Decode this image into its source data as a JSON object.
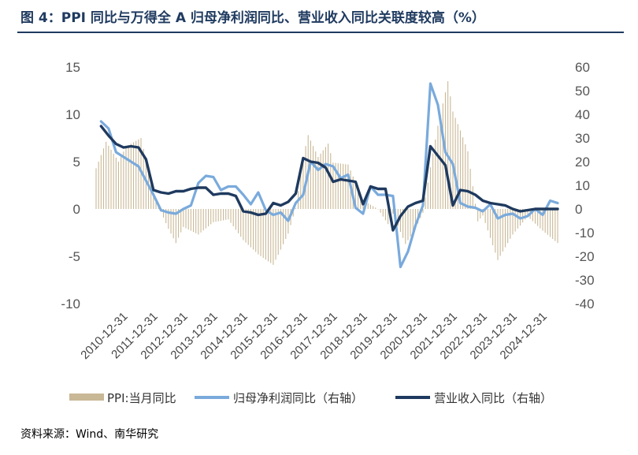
{
  "title": "图 4：PPI 同比与万得全 A 归母净利润同比、营业收入同比关联度较高（%）",
  "source": "资料来源：Wind、南华研究",
  "chart_data": {
    "type": "bar+line",
    "left_axis": {
      "ylim": [
        -10,
        15
      ],
      "ticks": [
        "15",
        "10",
        "5",
        "0",
        "-5",
        "-10"
      ]
    },
    "right_axis": {
      "ylim": [
        -40,
        60
      ],
      "ticks": [
        "60",
        "50",
        "40",
        "30",
        "20",
        "10",
        "0",
        "-10",
        "-20",
        "-30",
        "-40"
      ]
    },
    "x_tick_labels": [
      "2010-12-31",
      "2011-12-31",
      "2012-12-31",
      "2013-12-31",
      "2014-12-31",
      "2015-12-31",
      "2016-12-31",
      "2017-12-31",
      "2018-12-31",
      "2019-12-31",
      "2020-12-31",
      "2021-12-31",
      "2022-12-31",
      "2023-12-31",
      "2024-12-31"
    ],
    "time_range": [
      "2010-01",
      "2025-06"
    ],
    "legend": [
      "PPI:当月同比",
      "归母净利润同比（右轴）",
      "营业收入同比（右轴）"
    ],
    "legend_position": "bottom",
    "colors": {
      "ppi": "#c9b896",
      "profit": "#7aaadc",
      "revenue": "#1f3a5f"
    },
    "series": [
      {
        "name": "PPI:当月同比",
        "axis": "left",
        "kind": "bar",
        "monthly_anchors": [
          [
            "2010-01",
            4.3
          ],
          [
            "2010-05",
            7.1
          ],
          [
            "2010-10",
            5.0
          ],
          [
            "2011-01",
            6.6
          ],
          [
            "2011-07",
            7.5
          ],
          [
            "2011-12",
            1.7
          ],
          [
            "2012-03",
            -0.3
          ],
          [
            "2012-06",
            -2.1
          ],
          [
            "2012-09",
            -3.6
          ],
          [
            "2012-12",
            -1.9
          ],
          [
            "2013-06",
            -2.7
          ],
          [
            "2013-12",
            -1.4
          ],
          [
            "2014-06",
            -1.1
          ],
          [
            "2014-12",
            -3.3
          ],
          [
            "2015-06",
            -4.8
          ],
          [
            "2015-12",
            -5.9
          ],
          [
            "2016-03",
            -4.3
          ],
          [
            "2016-06",
            -2.6
          ],
          [
            "2016-09",
            0.1
          ],
          [
            "2016-12",
            5.5
          ],
          [
            "2017-02",
            7.8
          ],
          [
            "2017-06",
            5.5
          ],
          [
            "2017-10",
            6.9
          ],
          [
            "2017-12",
            4.9
          ],
          [
            "2018-06",
            4.7
          ],
          [
            "2018-12",
            0.9
          ],
          [
            "2019-06",
            0.0
          ],
          [
            "2019-10",
            -1.6
          ],
          [
            "2019-12",
            -0.5
          ],
          [
            "2020-05",
            -3.7
          ],
          [
            "2020-09",
            -2.1
          ],
          [
            "2020-12",
            -0.4
          ],
          [
            "2021-03",
            4.4
          ],
          [
            "2021-06",
            8.8
          ],
          [
            "2021-10",
            13.5
          ],
          [
            "2021-12",
            10.3
          ],
          [
            "2022-03",
            8.3
          ],
          [
            "2022-06",
            6.1
          ],
          [
            "2022-10",
            -1.3
          ],
          [
            "2022-12",
            -0.7
          ],
          [
            "2023-06",
            -5.4
          ],
          [
            "2023-12",
            -2.7
          ],
          [
            "2024-06",
            -0.8
          ],
          [
            "2024-12",
            -2.3
          ],
          [
            "2025-06",
            -3.6
          ]
        ]
      },
      {
        "name": "归母净利润同比（右轴）",
        "axis": "right",
        "kind": "line",
        "points": [
          [
            "2010-03",
            37
          ],
          [
            "2010-06",
            34
          ],
          [
            "2010-09",
            24
          ],
          [
            "2010-12",
            22
          ],
          [
            "2011-03",
            20
          ],
          [
            "2011-06",
            18
          ],
          [
            "2011-09",
            12
          ],
          [
            "2011-12",
            6
          ],
          [
            "2012-03",
            -0.5
          ],
          [
            "2012-06",
            -1.5
          ],
          [
            "2012-09",
            -2
          ],
          [
            "2012-12",
            0
          ],
          [
            "2013-03",
            1.5
          ],
          [
            "2013-06",
            11
          ],
          [
            "2013-09",
            14
          ],
          [
            "2013-12",
            13.5
          ],
          [
            "2014-03",
            8
          ],
          [
            "2014-06",
            9.5
          ],
          [
            "2014-09",
            9.5
          ],
          [
            "2014-12",
            6
          ],
          [
            "2015-03",
            2
          ],
          [
            "2015-06",
            7
          ],
          [
            "2015-09",
            -0.5
          ],
          [
            "2015-12",
            -2.5
          ],
          [
            "2016-03",
            -1.5
          ],
          [
            "2016-06",
            -5
          ],
          [
            "2016-09",
            2.5
          ],
          [
            "2016-12",
            6
          ],
          [
            "2017-03",
            20
          ],
          [
            "2017-06",
            16.5
          ],
          [
            "2017-09",
            19
          ],
          [
            "2017-12",
            18
          ],
          [
            "2018-03",
            13
          ],
          [
            "2018-06",
            14.5
          ],
          [
            "2018-09",
            0.5
          ],
          [
            "2018-12",
            -2
          ],
          [
            "2019-03",
            9.5
          ],
          [
            "2019-06",
            6
          ],
          [
            "2019-09",
            6
          ],
          [
            "2019-12",
            5.5
          ],
          [
            "2020-03",
            -24.5
          ],
          [
            "2020-06",
            -18
          ],
          [
            "2020-09",
            -7
          ],
          [
            "2020-12",
            1.5
          ],
          [
            "2021-03",
            53
          ],
          [
            "2021-06",
            44
          ],
          [
            "2021-09",
            24
          ],
          [
            "2021-12",
            19
          ],
          [
            "2022-03",
            2.5
          ],
          [
            "2022-06",
            1
          ],
          [
            "2022-09",
            0.5
          ],
          [
            "2022-12",
            -1
          ],
          [
            "2023-03",
            2
          ],
          [
            "2023-06",
            -4
          ],
          [
            "2023-09",
            -2.5
          ],
          [
            "2023-12",
            -2
          ],
          [
            "2024-03",
            -4
          ],
          [
            "2024-06",
            -3
          ],
          [
            "2024-09",
            0
          ],
          [
            "2024-12",
            -2.5
          ],
          [
            "2025-03",
            3.5
          ],
          [
            "2025-06",
            2.5
          ]
        ]
      },
      {
        "name": "营业收入同比（右轴）",
        "axis": "right",
        "kind": "line",
        "points": [
          [
            "2010-03",
            35
          ],
          [
            "2010-06",
            31
          ],
          [
            "2010-09",
            27.5
          ],
          [
            "2010-12",
            26
          ],
          [
            "2011-03",
            26.5
          ],
          [
            "2011-06",
            26
          ],
          [
            "2011-09",
            21
          ],
          [
            "2011-12",
            8
          ],
          [
            "2012-03",
            7
          ],
          [
            "2012-06",
            6.5
          ],
          [
            "2012-09",
            7.5
          ],
          [
            "2012-12",
            7.5
          ],
          [
            "2013-03",
            8.5
          ],
          [
            "2013-06",
            9
          ],
          [
            "2013-09",
            9
          ],
          [
            "2013-12",
            6
          ],
          [
            "2014-03",
            6.5
          ],
          [
            "2014-06",
            6.5
          ],
          [
            "2014-09",
            5.5
          ],
          [
            "2014-12",
            -1
          ],
          [
            "2015-03",
            -1.5
          ],
          [
            "2015-06",
            -2.5
          ],
          [
            "2015-09",
            -2
          ],
          [
            "2015-12",
            2.5
          ],
          [
            "2016-03",
            1.5
          ],
          [
            "2016-06",
            3
          ],
          [
            "2016-09",
            6.5
          ],
          [
            "2016-12",
            21.5
          ],
          [
            "2017-03",
            20
          ],
          [
            "2017-06",
            19.5
          ],
          [
            "2017-09",
            17.5
          ],
          [
            "2017-12",
            11.5
          ],
          [
            "2018-03",
            12.5
          ],
          [
            "2018-06",
            12
          ],
          [
            "2018-09",
            11.5
          ],
          [
            "2018-12",
            2
          ],
          [
            "2019-03",
            9.5
          ],
          [
            "2019-06",
            8.5
          ],
          [
            "2019-09",
            8.5
          ],
          [
            "2019-12",
            -9
          ],
          [
            "2020-03",
            -3
          ],
          [
            "2020-06",
            1
          ],
          [
            "2020-09",
            2.5
          ],
          [
            "2020-12",
            3.5
          ],
          [
            "2021-03",
            26.5
          ],
          [
            "2021-06",
            22.5
          ],
          [
            "2021-09",
            18.5
          ],
          [
            "2021-12",
            1.5
          ],
          [
            "2022-03",
            8
          ],
          [
            "2022-06",
            7.5
          ],
          [
            "2022-09",
            6
          ],
          [
            "2022-12",
            3.5
          ],
          [
            "2023-03",
            2.5
          ],
          [
            "2023-06",
            2
          ],
          [
            "2023-09",
            1.5
          ],
          [
            "2023-12",
            0
          ],
          [
            "2024-03",
            -1
          ],
          [
            "2024-06",
            -0.5
          ],
          [
            "2024-09",
            0
          ],
          [
            "2024-12",
            0
          ],
          [
            "2025-03",
            0
          ],
          [
            "2025-06",
            0
          ]
        ]
      }
    ]
  }
}
